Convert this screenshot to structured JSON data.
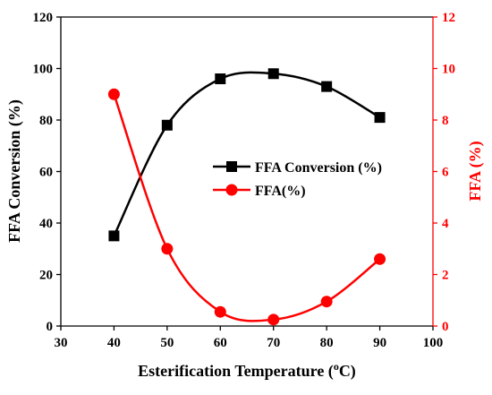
{
  "chart_data": {
    "type": "line",
    "x": [
      40,
      50,
      60,
      70,
      80,
      90
    ],
    "series": [
      {
        "name": "FFA Conversion (%)",
        "axis": "left",
        "color": "#000000",
        "marker": "square",
        "values": [
          35,
          78,
          96,
          98,
          93,
          81
        ]
      },
      {
        "name": "FFA(%)",
        "axis": "right",
        "color": "#ff0000",
        "marker": "circle",
        "values": [
          9.0,
          3.0,
          0.55,
          0.25,
          0.95,
          2.6
        ]
      }
    ],
    "xlabel": {
      "pre": "Esterification Temperature (",
      "sup": "o",
      "post": "C)"
    },
    "ylabel_left": "FFA Conversion (%)",
    "ylabel_right": "FFA (%)",
    "xlim": [
      30,
      100
    ],
    "ylim_left": [
      0,
      120
    ],
    "ylim_right": [
      0,
      12
    ],
    "x_ticks": [
      "30",
      "40",
      "50",
      "60",
      "70",
      "80",
      "90",
      "100"
    ],
    "y_left_ticks": [
      "0",
      "20",
      "40",
      "60",
      "80",
      "100",
      "120"
    ],
    "y_right_ticks": [
      "0",
      "2",
      "4",
      "6",
      "8",
      "10",
      "12"
    ],
    "grid": false,
    "legend_position": "center-right"
  }
}
